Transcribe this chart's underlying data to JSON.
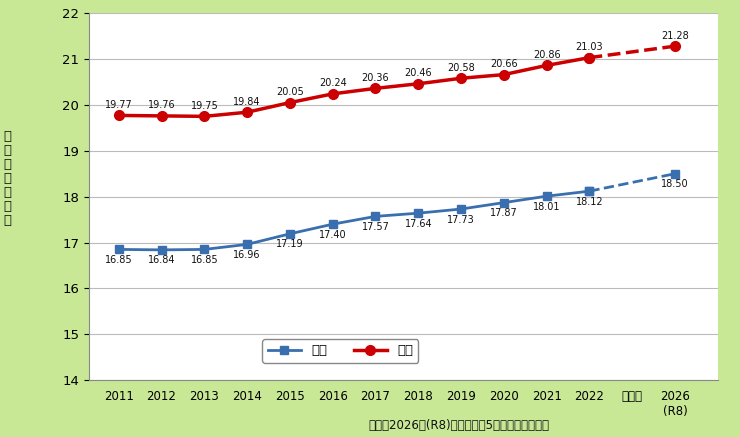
{
  "ylabel_chars": [
    "健",
    "康",
    "寿",
    "命",
    "（",
    "年",
    "）"
  ],
  "footnote": "＊注：2026年(R8)は新埼玉県5か年計画の目標値",
  "background_color": "#c8e896",
  "plot_bg_color": "#ffffff",
  "years_main": [
    2011,
    2012,
    2013,
    2014,
    2015,
    2016,
    2017,
    2018,
    2019,
    2020,
    2021,
    2022
  ],
  "year_target": 2026,
  "male_main": [
    16.85,
    16.84,
    16.85,
    16.96,
    17.19,
    17.4,
    17.57,
    17.64,
    17.73,
    17.87,
    18.01,
    18.12
  ],
  "male_target": 18.5,
  "female_main": [
    19.77,
    19.76,
    19.75,
    19.84,
    20.05,
    20.24,
    20.36,
    20.46,
    20.58,
    20.66,
    20.86,
    21.03
  ],
  "female_target": 21.28,
  "male_color": "#3a6faf",
  "female_color": "#cc0000",
  "ylim_min": 14,
  "ylim_max": 22,
  "yticks": [
    14,
    15,
    16,
    17,
    18,
    19,
    20,
    21,
    22
  ],
  "legend_male": "男性",
  "legend_female": "女性",
  "dots_x_label": "・・・",
  "target_year_label": "2026\n(R8)"
}
